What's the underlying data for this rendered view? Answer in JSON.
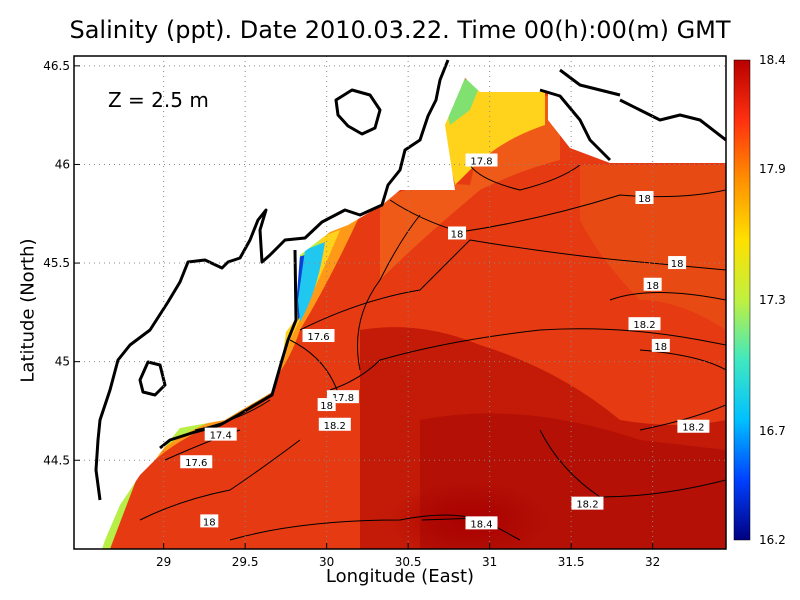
{
  "chart_data": {
    "type": "heatmap",
    "title": "Salinity (ppt). Date 2010.03.22. Time 00(h):00(m) GMT",
    "annotation": "Z = 2.5 m",
    "xlabel": "Longitude (East)",
    "ylabel": "Latitude (North)",
    "xlim": [
      28.45,
      32.45
    ],
    "ylim": [
      44.05,
      46.55
    ],
    "xticks": [
      {
        "value": 29,
        "label": "29"
      },
      {
        "value": 29.5,
        "label": "29.5"
      },
      {
        "value": 30,
        "label": "30"
      },
      {
        "value": 30.5,
        "label": "30.5"
      },
      {
        "value": 31,
        "label": "31"
      },
      {
        "value": 31.5,
        "label": "31.5"
      },
      {
        "value": 32,
        "label": "32"
      }
    ],
    "yticks": [
      {
        "value": 44.5,
        "label": "44.5"
      },
      {
        "value": 45,
        "label": "45"
      },
      {
        "value": 45.5,
        "label": "45.5"
      },
      {
        "value": 46,
        "label": "46"
      },
      {
        "value": 46.5,
        "label": "46.5"
      }
    ],
    "grid": true,
    "colorbar": {
      "min": 16.2,
      "max": 18.4,
      "ticks": [
        {
          "value": 18.4,
          "label": "18.4"
        },
        {
          "value": 17.9,
          "label": "17.9"
        },
        {
          "value": 17.3,
          "label": "17.3"
        },
        {
          "value": 16.7,
          "label": "16.7"
        },
        {
          "value": 16.2,
          "label": "16.2"
        }
      ],
      "colors": [
        "#000080",
        "#0040ff",
        "#00c0ff",
        "#40e8c0",
        "#c0f040",
        "#ffe000",
        "#ff9000",
        "#ff3010",
        "#b80000"
      ]
    },
    "contour_labels": [
      {
        "lon": 30.95,
        "lat": 46.02,
        "text": "17.8"
      },
      {
        "lon": 31.95,
        "lat": 45.83,
        "text": "18"
      },
      {
        "lon": 30.8,
        "lat": 45.65,
        "text": "18"
      },
      {
        "lon": 32.15,
        "lat": 45.5,
        "text": "18"
      },
      {
        "lon": 32.0,
        "lat": 45.39,
        "text": "18"
      },
      {
        "lon": 31.95,
        "lat": 45.19,
        "text": "18.2"
      },
      {
        "lon": 32.05,
        "lat": 45.08,
        "text": "18"
      },
      {
        "lon": 29.95,
        "lat": 45.13,
        "text": "17.6"
      },
      {
        "lon": 30.1,
        "lat": 44.82,
        "text": "17.8"
      },
      {
        "lon": 30.0,
        "lat": 44.78,
        "text": "18"
      },
      {
        "lon": 30.05,
        "lat": 44.68,
        "text": "18.2"
      },
      {
        "lon": 29.35,
        "lat": 44.63,
        "text": "17.4"
      },
      {
        "lon": 29.2,
        "lat": 44.49,
        "text": "17.6"
      },
      {
        "lon": 29.28,
        "lat": 44.19,
        "text": "18"
      },
      {
        "lon": 30.95,
        "lat": 44.18,
        "text": "18.4"
      },
      {
        "lon": 31.6,
        "lat": 44.28,
        "text": "18.2"
      },
      {
        "lon": 32.25,
        "lat": 44.67,
        "text": "18.2"
      }
    ]
  }
}
